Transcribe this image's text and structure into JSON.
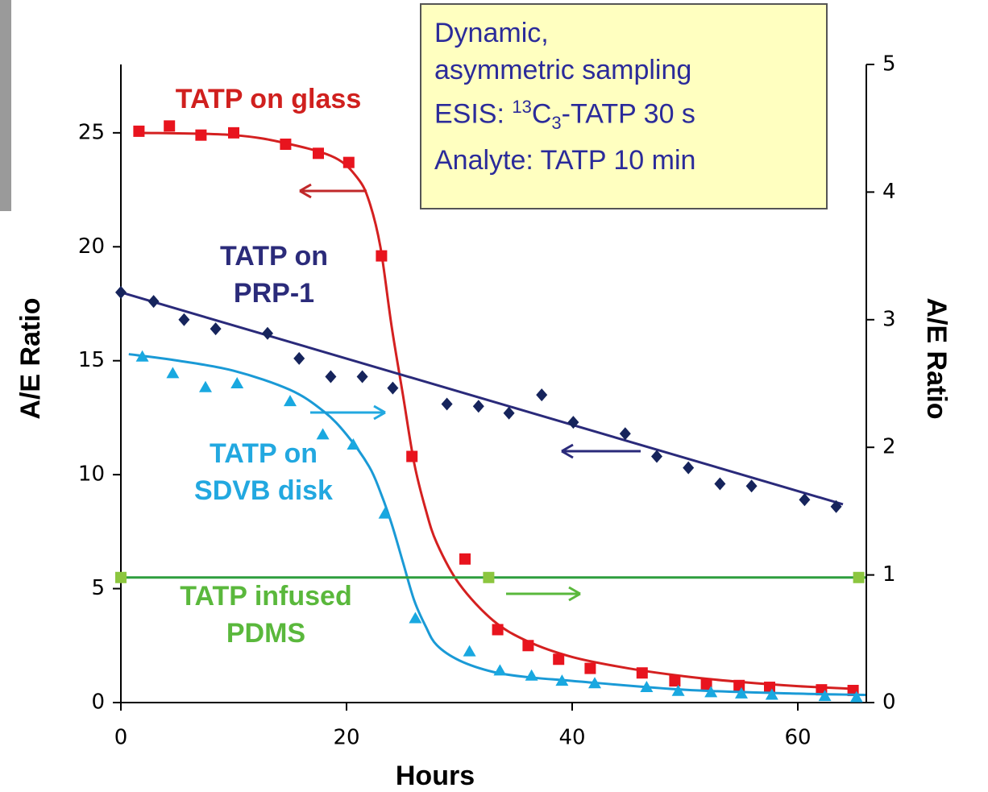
{
  "chart_data": {
    "type": "scatter",
    "y_label": "A/E Ratio",
    "y2_label": "A/E Ratio",
    "x_label": "Hours",
    "xlim": [
      0,
      66
    ],
    "xticks": [
      0,
      20,
      40,
      60
    ],
    "ylim": [
      0,
      28
    ],
    "yticks": [
      0,
      5,
      10,
      15,
      20,
      25
    ],
    "y2lim": [
      0,
      5
    ],
    "y2ticks": [
      0,
      1,
      2,
      3,
      4,
      5
    ],
    "note": {
      "lines": [
        "Dynamic,",
        "asymmetric sampling"
      ],
      "esis": [
        "ESIS: ",
        "13",
        "C",
        "3",
        "-TATP 30 s"
      ],
      "analyte": "Analyte: TATP 10 min"
    },
    "series": [
      {
        "label": [
          "TATP on glass"
        ],
        "color": "#e8141e",
        "line_color": "#d42020",
        "label_color": "#d0201e",
        "marker": "square",
        "axis": "y",
        "x": [
          1.6,
          4.3,
          7.1,
          10,
          14.6,
          17.5,
          20.2,
          23.1,
          25.8,
          30.5,
          33.4,
          36.1,
          38.8,
          41.6,
          46.2,
          49.1,
          51.9,
          54.8,
          57.5,
          62.1,
          64.9
        ],
        "values": [
          25.07,
          25.3,
          24.9,
          25.0,
          24.5,
          24.1,
          23.7,
          19.6,
          10.8,
          6.3,
          3.2,
          2.5,
          1.9,
          1.5,
          1.3,
          0.95,
          0.8,
          0.75,
          0.67,
          0.56,
          0.53
        ],
        "fit": {
          "x": [
            1.6,
            10,
            15,
            19,
            21,
            22,
            23,
            24,
            25,
            26,
            27,
            28,
            30,
            33,
            36,
            40,
            45,
            50,
            55,
            60,
            65
          ],
          "values": [
            25.0,
            24.9,
            24.5,
            23.9,
            23.0,
            22.0,
            20.0,
            16.5,
            13.5,
            10.5,
            8.5,
            7.0,
            5.2,
            3.6,
            2.7,
            2.0,
            1.5,
            1.15,
            0.9,
            0.72,
            0.6
          ]
        }
      },
      {
        "label": [
          "TATP on",
          "PRP-1"
        ],
        "color": "#16245c",
        "line_color": "#2a2a7a",
        "label_color": "#2b2b7a",
        "marker": "diamond",
        "axis": "y",
        "x": [
          0,
          2.9,
          5.6,
          8.4,
          13,
          15.8,
          18.6,
          21.4,
          24.1,
          28.9,
          31.7,
          34.4,
          37.3,
          40.1,
          44.7,
          47.5,
          50.3,
          53.1,
          55.9,
          60.6,
          63.4
        ],
        "values": [
          18.0,
          17.6,
          16.8,
          16.4,
          16.2,
          15.1,
          14.3,
          14.3,
          13.8,
          13.1,
          13.0,
          12.7,
          13.5,
          12.3,
          11.8,
          10.8,
          10.3,
          9.6,
          9.5,
          8.9,
          8.6
        ],
        "fit": {
          "x": [
            0,
            64
          ],
          "values": [
            18.0,
            8.7
          ]
        }
      },
      {
        "label": [
          "TATP on",
          "SDVB disk"
        ],
        "color": "#19a8e0",
        "line_color": "#1a9ad6",
        "label_color": "#22a8e0",
        "marker": "triangle",
        "axis": "y2",
        "x": [
          1.9,
          4.6,
          7.5,
          10.3,
          15,
          17.9,
          20.6,
          23.4,
          26.1,
          30.9,
          33.6,
          36.4,
          39.1,
          42,
          46.6,
          49.4,
          52.3,
          55,
          57.7,
          62.4,
          65.2
        ],
        "values": [
          2.71,
          2.58,
          2.47,
          2.5,
          2.36,
          2.1,
          2.02,
          1.48,
          0.66,
          0.4,
          0.25,
          0.21,
          0.17,
          0.15,
          0.12,
          0.09,
          0.08,
          0.07,
          0.06,
          0.05,
          0.04
        ],
        "fit": {
          "x": [
            0.7,
            5,
            10,
            15,
            18,
            20,
            22,
            23,
            24,
            25,
            26,
            27,
            28,
            30,
            33,
            36,
            40,
            50,
            60,
            66
          ],
          "values": [
            2.73,
            2.68,
            2.6,
            2.45,
            2.28,
            2.1,
            1.85,
            1.65,
            1.4,
            1.1,
            0.8,
            0.6,
            0.45,
            0.33,
            0.24,
            0.2,
            0.17,
            0.1,
            0.07,
            0.06
          ]
        }
      },
      {
        "label": [
          "TATP infused",
          "PDMS"
        ],
        "color": "#8cc63f",
        "line_color": "#2e9e3e",
        "label_color": "#5ab83c",
        "marker": "square",
        "axis": "y2",
        "x": [
          0,
          32.6,
          65.4
        ],
        "values": [
          0.98,
          0.98,
          0.98
        ],
        "fit": {
          "x": [
            0,
            66
          ],
          "values": [
            0.98,
            0.98
          ]
        }
      }
    ]
  }
}
